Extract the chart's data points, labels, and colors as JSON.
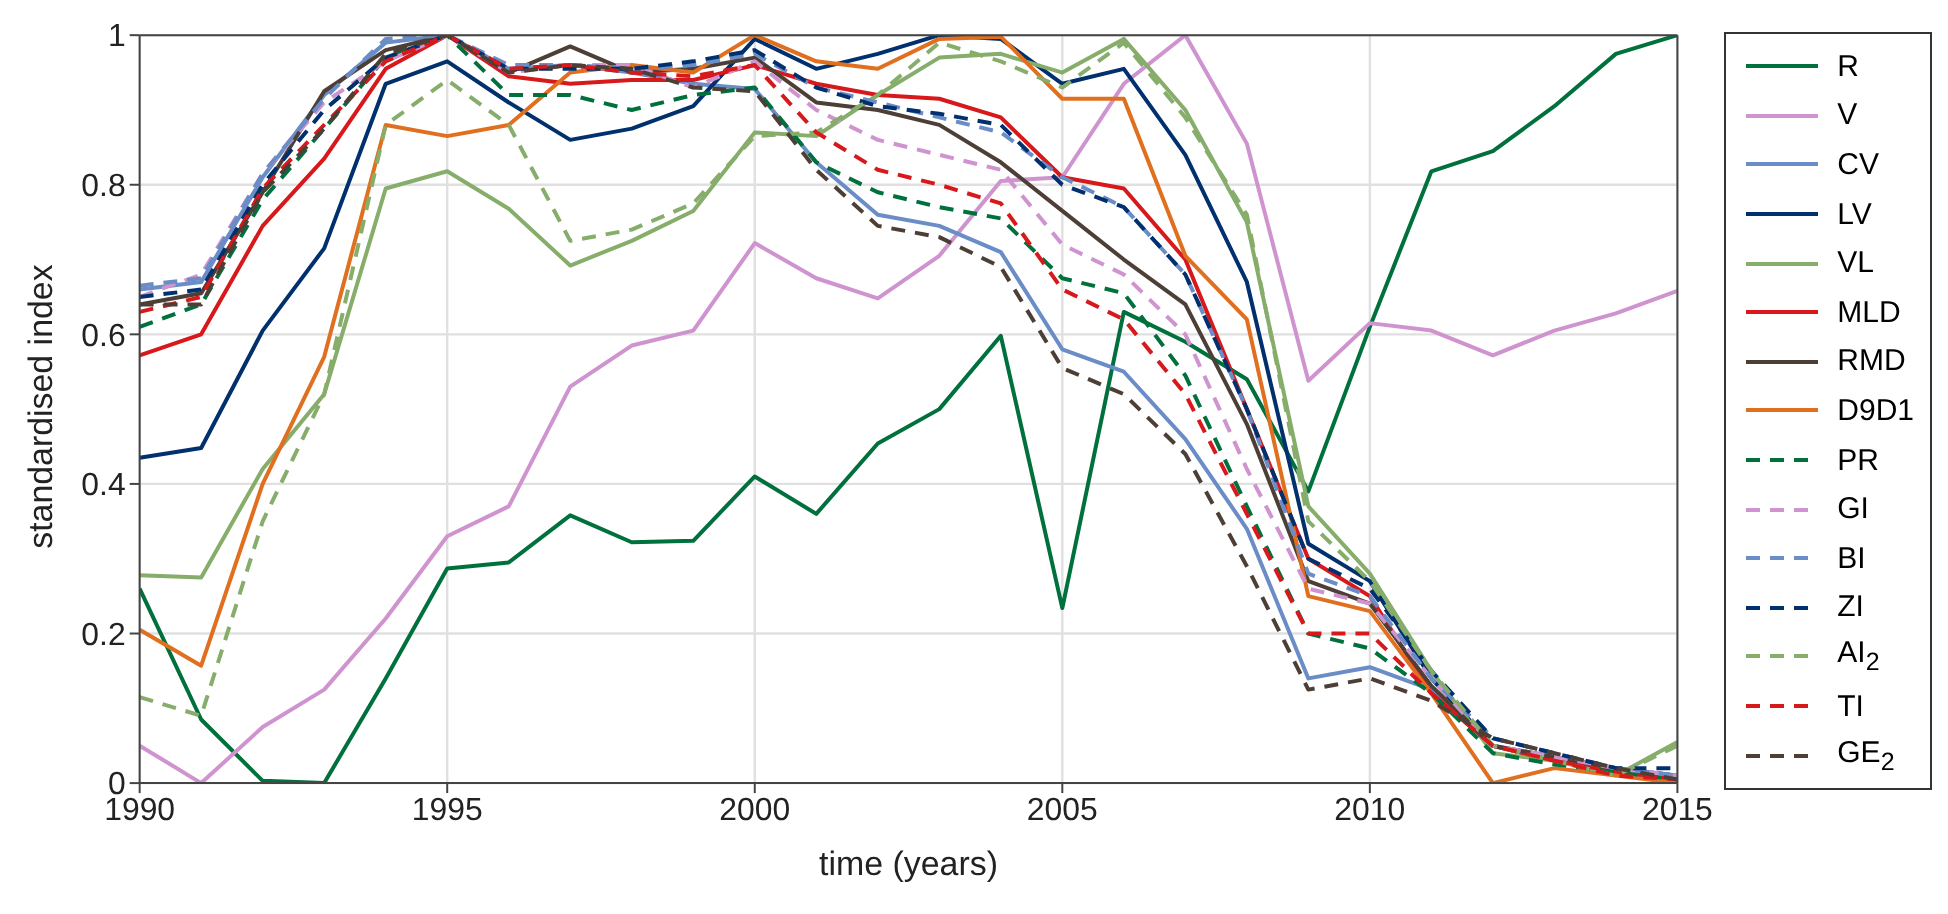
{
  "chart_data": {
    "type": "line",
    "xlabel": "time (years)",
    "ylabel": "standardised index",
    "x": [
      1990,
      1991,
      1992,
      1993,
      1994,
      1995,
      1996,
      1997,
      1998,
      1999,
      2000,
      2001,
      2002,
      2003,
      2004,
      2005,
      2006,
      2007,
      2008,
      2009,
      2010,
      2011,
      2012,
      2013,
      2014,
      2015
    ],
    "xlim": [
      1990,
      2015
    ],
    "xticks": [
      1990,
      1995,
      2000,
      2005,
      2010,
      2015
    ],
    "ylim": [
      0,
      1
    ],
    "yticks": [
      0,
      0.2,
      0.4,
      0.6,
      0.8,
      1
    ],
    "grid": true,
    "legend": "right",
    "series": [
      {
        "name": "R",
        "color": "#00703c",
        "line_style": "solid",
        "values": [
          0.26,
          0.085,
          0.003,
          0.0,
          0.14,
          0.287,
          0.295,
          0.358,
          0.322,
          0.324,
          0.41,
          0.36,
          0.454,
          0.5,
          0.598,
          0.234,
          0.63,
          0.59,
          0.54,
          0.39,
          0.61,
          0.818,
          0.845,
          0.905,
          0.975,
          1.0
        ]
      },
      {
        "name": "V",
        "color": "#cf94cf",
        "line_style": "solid",
        "values": [
          0.05,
          0.0,
          0.075,
          0.125,
          0.22,
          0.33,
          0.37,
          0.53,
          0.585,
          0.605,
          0.722,
          0.675,
          0.648,
          0.705,
          0.805,
          0.81,
          0.935,
          1.0,
          0.855,
          0.538,
          0.615,
          0.605,
          0.572,
          0.605,
          0.628,
          0.658
        ]
      },
      {
        "name": "CV",
        "color": "#6a8cc7",
        "line_style": "solid",
        "values": [
          0.66,
          0.67,
          0.81,
          0.92,
          0.99,
          1.0,
          0.955,
          0.96,
          0.95,
          0.935,
          0.928,
          0.83,
          0.76,
          0.745,
          0.71,
          0.58,
          0.55,
          0.46,
          0.34,
          0.14,
          0.155,
          0.125,
          0.05,
          0.035,
          0.02,
          0.01
        ]
      },
      {
        "name": "LV",
        "color": "#00306e",
        "line_style": "solid",
        "values": [
          0.435,
          0.448,
          0.605,
          0.715,
          0.935,
          0.965,
          0.91,
          0.86,
          0.875,
          0.905,
          0.995,
          0.955,
          0.975,
          1.0,
          0.995,
          0.935,
          0.955,
          0.84,
          0.67,
          0.32,
          0.27,
          0.14,
          0.05,
          0.03,
          0.015,
          0.0
        ]
      },
      {
        "name": "VL",
        "color": "#86ad6a",
        "line_style": "solid",
        "values": [
          0.278,
          0.275,
          0.42,
          0.52,
          0.795,
          0.818,
          0.768,
          0.692,
          0.725,
          0.765,
          0.87,
          0.865,
          0.92,
          0.97,
          0.975,
          0.95,
          0.995,
          0.9,
          0.75,
          0.37,
          0.28,
          0.15,
          0.04,
          0.03,
          0.01,
          0.055
        ]
      },
      {
        "name": "MLD",
        "color": "#d7191c",
        "line_style": "solid",
        "values": [
          0.572,
          0.6,
          0.745,
          0.835,
          0.955,
          1.0,
          0.945,
          0.935,
          0.94,
          0.94,
          0.96,
          0.935,
          0.92,
          0.915,
          0.89,
          0.81,
          0.795,
          0.7,
          0.5,
          0.3,
          0.25,
          0.12,
          0.05,
          0.03,
          0.015,
          0.005
        ]
      },
      {
        "name": "RMD",
        "color": "#4d3f36",
        "line_style": "solid",
        "values": [
          0.64,
          0.655,
          0.79,
          0.925,
          0.98,
          1.0,
          0.95,
          0.985,
          0.95,
          0.955,
          0.97,
          0.91,
          0.9,
          0.88,
          0.83,
          0.765,
          0.7,
          0.64,
          0.48,
          0.27,
          0.24,
          0.13,
          0.05,
          0.035,
          0.02,
          0.01
        ]
      },
      {
        "name": "D9D1",
        "color": "#e07020",
        "line_style": "solid",
        "values": [
          0.205,
          0.157,
          0.4,
          0.57,
          0.88,
          0.865,
          0.88,
          0.95,
          0.96,
          0.95,
          1.0,
          0.965,
          0.955,
          0.995,
          0.998,
          0.915,
          0.915,
          0.705,
          0.62,
          0.25,
          0.23,
          0.12,
          0.0,
          0.02,
          0.01,
          0.0
        ]
      },
      {
        "name": "PR",
        "color": "#00703c",
        "line_style": "dashed",
        "values": [
          0.61,
          0.64,
          0.78,
          0.875,
          0.97,
          1.0,
          0.92,
          0.92,
          0.9,
          0.92,
          0.93,
          0.83,
          0.79,
          0.77,
          0.755,
          0.675,
          0.655,
          0.545,
          0.37,
          0.2,
          0.18,
          0.12,
          0.04,
          0.025,
          0.015,
          0.005
        ]
      },
      {
        "name": "GI",
        "color": "#cf94cf",
        "line_style": "dashed",
        "values": [
          0.65,
          0.68,
          0.815,
          0.91,
          0.965,
          1.0,
          0.95,
          0.96,
          0.96,
          0.93,
          0.965,
          0.9,
          0.86,
          0.84,
          0.82,
          0.72,
          0.68,
          0.6,
          0.42,
          0.26,
          0.24,
          0.14,
          0.05,
          0.035,
          0.02,
          0.01
        ]
      },
      {
        "name": "BI",
        "color": "#6a8cc7",
        "line_style": "dashed",
        "values": [
          0.665,
          0.675,
          0.815,
          0.915,
          0.995,
          1.0,
          0.96,
          0.96,
          0.955,
          0.96,
          0.975,
          0.93,
          0.91,
          0.89,
          0.87,
          0.81,
          0.77,
          0.68,
          0.5,
          0.28,
          0.25,
          0.14,
          0.06,
          0.04,
          0.02,
          0.01
        ]
      },
      {
        "name": "ZI",
        "color": "#00306e",
        "line_style": "dashed",
        "values": [
          0.65,
          0.66,
          0.8,
          0.9,
          0.97,
          1.0,
          0.955,
          0.955,
          0.955,
          0.965,
          0.98,
          0.93,
          0.905,
          0.895,
          0.88,
          0.8,
          0.77,
          0.68,
          0.5,
          0.3,
          0.26,
          0.15,
          0.06,
          0.04,
          0.02,
          0.02
        ]
      },
      {
        "name": "AI$_{2}$",
        "color": "#86ad6a",
        "line_style": "dashed",
        "values": [
          0.115,
          0.09,
          0.35,
          0.52,
          0.88,
          0.94,
          0.88,
          0.725,
          0.74,
          0.775,
          0.865,
          0.87,
          0.92,
          0.99,
          0.965,
          0.93,
          0.99,
          0.89,
          0.76,
          0.35,
          0.27,
          0.15,
          0.05,
          0.03,
          0.01,
          0.05
        ]
      },
      {
        "name": "TI",
        "color": "#d7191c",
        "line_style": "dashed",
        "values": [
          0.63,
          0.65,
          0.795,
          0.88,
          0.965,
          1.0,
          0.955,
          0.96,
          0.95,
          0.945,
          0.96,
          0.87,
          0.82,
          0.8,
          0.775,
          0.66,
          0.62,
          0.52,
          0.36,
          0.2,
          0.2,
          0.12,
          0.05,
          0.03,
          0.01,
          0.005
        ]
      },
      {
        "name": "GE$_{2}$",
        "color": "#4d3f36",
        "line_style": "dashed",
        "values": [
          0.64,
          0.64,
          0.79,
          0.875,
          0.975,
          1.0,
          0.95,
          0.96,
          0.955,
          0.93,
          0.925,
          0.82,
          0.745,
          0.73,
          0.69,
          0.555,
          0.52,
          0.44,
          0.29,
          0.125,
          0.14,
          0.11,
          0.06,
          0.04,
          0.02,
          0.005
        ]
      }
    ]
  }
}
